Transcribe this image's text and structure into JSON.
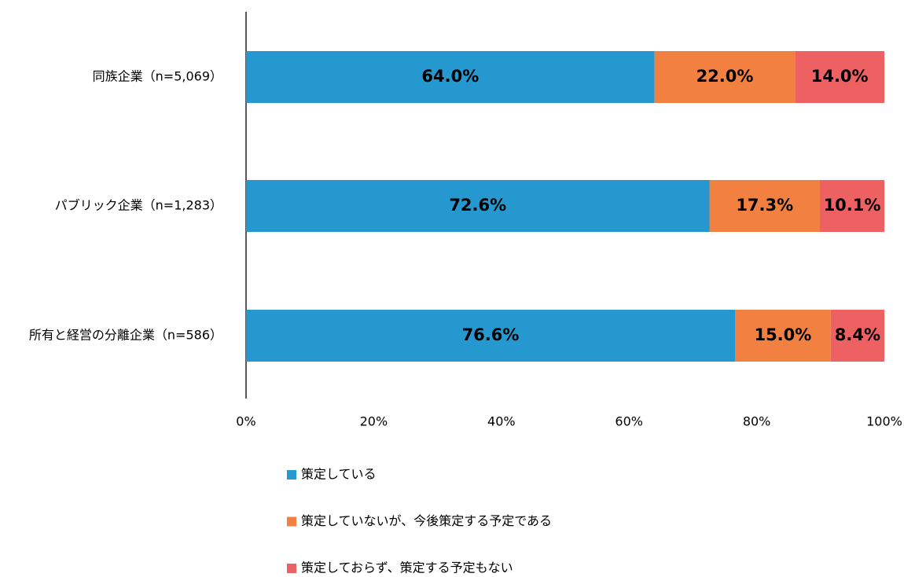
{
  "chart_data": {
    "type": "bar",
    "orientation": "horizontal",
    "stacked": true,
    "categories": [
      "同族企業（n=5,069）",
      "パブリック企業（n=1,283）",
      "所有と経営の分離企業（n=586）"
    ],
    "series": [
      {
        "name": "策定している",
        "color": "#2599cf",
        "values": [
          64.0,
          72.6,
          76.6
        ],
        "value_labels": [
          "64.0%",
          "72.6%",
          "76.6%"
        ]
      },
      {
        "name": "策定していないが、今後策定する予定である",
        "color": "#f28040",
        "values": [
          22.0,
          17.3,
          15.0
        ],
        "value_labels": [
          "22.0%",
          "17.3%",
          "15.0%"
        ]
      },
      {
        "name": "策定しておらず、策定する予定もない",
        "color": "#ee6163",
        "values": [
          14.0,
          10.1,
          8.4
        ],
        "value_labels": [
          "14.0%",
          "10.1%",
          "8.4%"
        ]
      }
    ],
    "xlim": [
      0,
      100
    ],
    "xticks": [
      {
        "value": 0,
        "label": "0%"
      },
      {
        "value": 20,
        "label": "20%"
      },
      {
        "value": 40,
        "label": "40%"
      },
      {
        "value": 60,
        "label": "60%"
      },
      {
        "value": 80,
        "label": "80%"
      },
      {
        "value": 100,
        "label": "100%"
      }
    ],
    "grid": false,
    "legend": "bottom"
  }
}
